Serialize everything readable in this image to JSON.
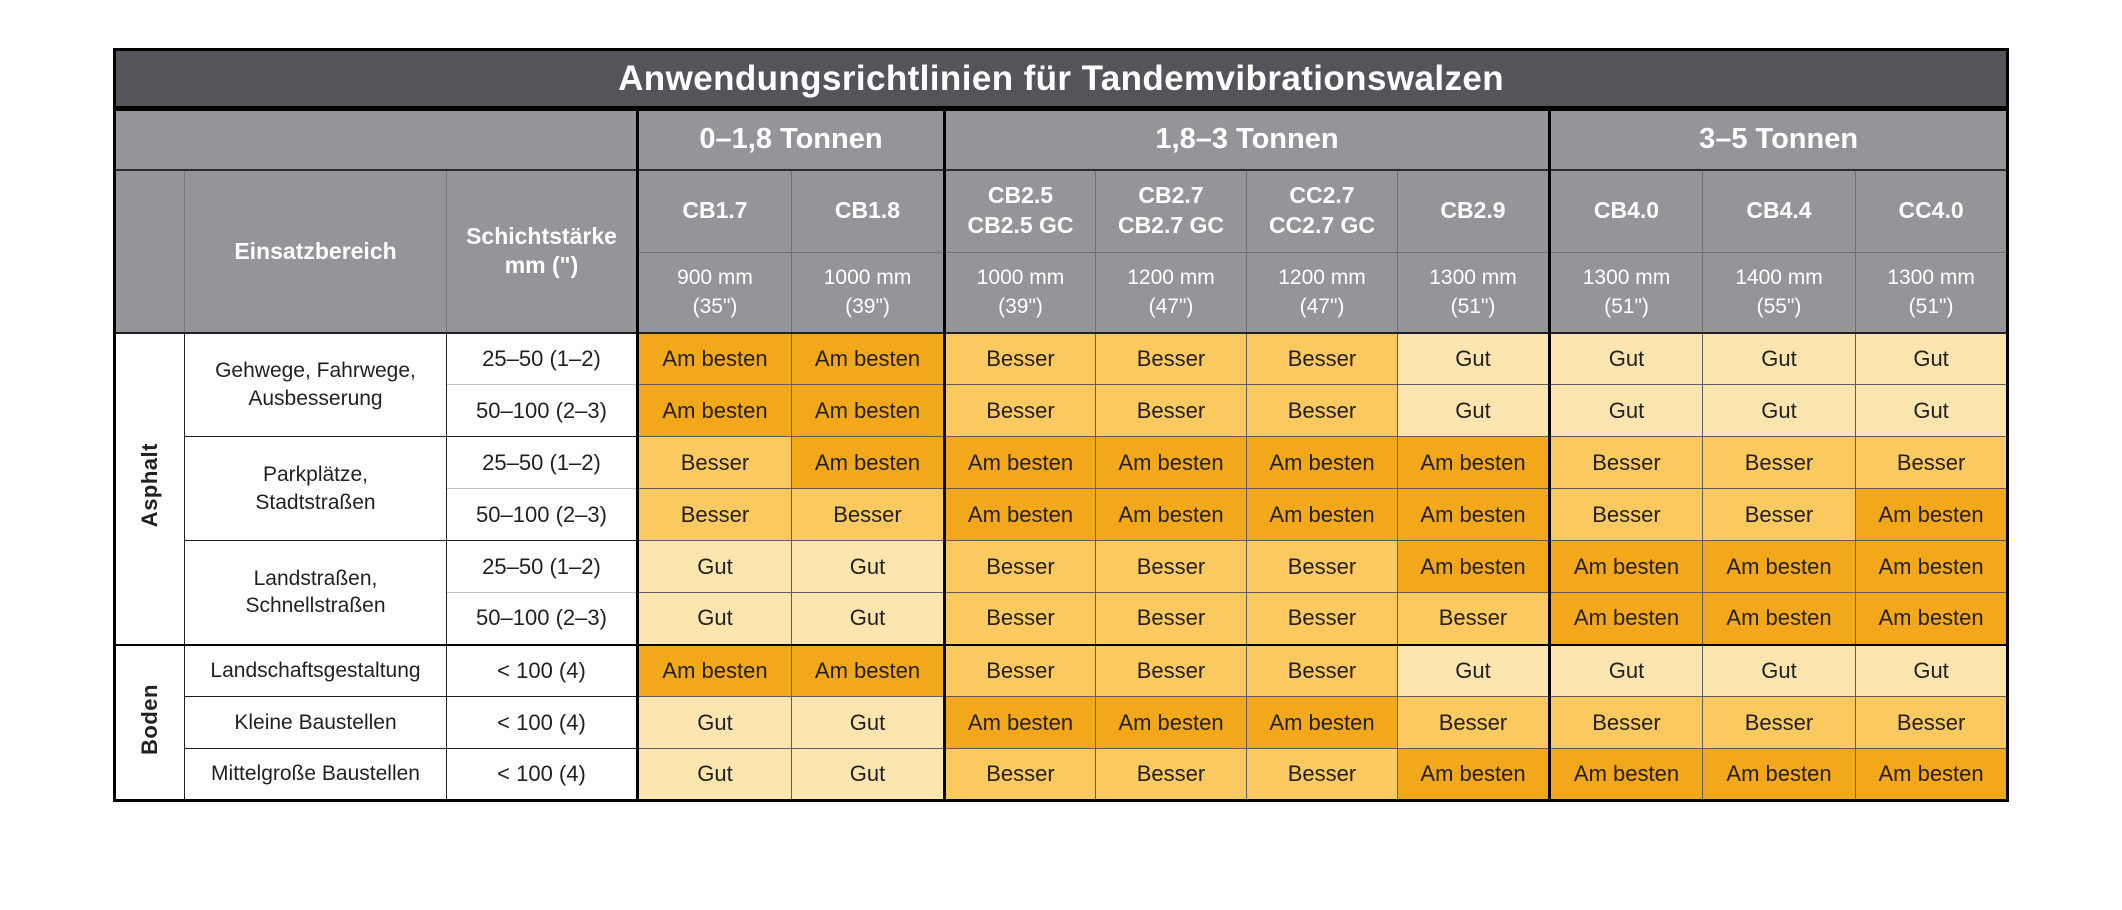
{
  "title": "Anwendungsrichtlinien für Tandemvibrationswalzen",
  "corner": {
    "einsatzbereich": "Einsatzbereich",
    "schichtstaerke": "Schichtstärke\nmm (\")"
  },
  "groups": [
    {
      "label": "0–1,8 Tonnen",
      "models": [
        {
          "name": "CB1.7",
          "width": "900 mm\n(35\")"
        },
        {
          "name": "CB1.8",
          "width": "1000 mm\n(39\")"
        }
      ]
    },
    {
      "label": "1,8–3 Tonnen",
      "models": [
        {
          "name": "CB2.5\nCB2.5 GC",
          "width": "1000 mm\n(39\")"
        },
        {
          "name": "CB2.7\nCB2.7 GC",
          "width": "1200 mm\n(47\")"
        },
        {
          "name": "CC2.7\nCC2.7 GC",
          "width": "1200 mm\n(47\")"
        },
        {
          "name": "CB2.9",
          "width": "1300 mm\n(51\")"
        }
      ]
    },
    {
      "label": "3–5 Tonnen",
      "models": [
        {
          "name": "CB4.0",
          "width": "1300 mm\n(51\")"
        },
        {
          "name": "CB4.4",
          "width": "1400 mm\n(55\")"
        },
        {
          "name": "CC4.0",
          "width": "1300 mm\n(51\")"
        }
      ]
    }
  ],
  "rating_labels": {
    "best": "Am besten",
    "better": "Besser",
    "good": "Gut"
  },
  "colors": {
    "am_besten": "#F3A81C",
    "besser": "#FAC95F",
    "gut": "#FCE5AF",
    "title_bar": "#54555A",
    "header": "#949598",
    "header_text": "#FFFFFF",
    "cell_text": "#231F20"
  },
  "sections": [
    {
      "label": "Asphalt",
      "areas": [
        {
          "label": "Gehwege, Fahrwege,\nAusbesserung",
          "rows": [
            {
              "thickness": "25–50 (1–2)",
              "ratings": [
                "best",
                "best",
                "better",
                "better",
                "better",
                "good",
                "good",
                "good",
                "good"
              ]
            },
            {
              "thickness": "50–100 (2–3)",
              "ratings": [
                "best",
                "best",
                "better",
                "better",
                "better",
                "good",
                "good",
                "good",
                "good"
              ]
            }
          ]
        },
        {
          "label": "Parkplätze,\nStadtstraßen",
          "rows": [
            {
              "thickness": "25–50 (1–2)",
              "ratings": [
                "better",
                "best",
                "best",
                "best",
                "best",
                "best",
                "better",
                "better",
                "better"
              ]
            },
            {
              "thickness": "50–100 (2–3)",
              "ratings": [
                "better",
                "better",
                "best",
                "best",
                "best",
                "best",
                "better",
                "better",
                "best"
              ]
            }
          ]
        },
        {
          "label": "Landstraßen,\nSchnellstraßen",
          "rows": [
            {
              "thickness": "25–50 (1–2)",
              "ratings": [
                "good",
                "good",
                "better",
                "better",
                "better",
                "best",
                "best",
                "best",
                "best"
              ]
            },
            {
              "thickness": "50–100 (2–3)",
              "ratings": [
                "good",
                "good",
                "better",
                "better",
                "better",
                "better",
                "best",
                "best",
                "best"
              ]
            }
          ]
        }
      ]
    },
    {
      "label": "Boden",
      "areas": [
        {
          "label": "Landschaftsgestaltung",
          "rows": [
            {
              "thickness": "< 100 (4)",
              "ratings": [
                "best",
                "best",
                "better",
                "better",
                "better",
                "good",
                "good",
                "good",
                "good"
              ]
            }
          ]
        },
        {
          "label": "Kleine Baustellen",
          "rows": [
            {
              "thickness": "< 100 (4)",
              "ratings": [
                "good",
                "good",
                "best",
                "best",
                "best",
                "better",
                "better",
                "better",
                "better"
              ]
            }
          ]
        },
        {
          "label": "Mittelgroße Baustellen",
          "rows": [
            {
              "thickness": "< 100 (4)",
              "ratings": [
                "good",
                "good",
                "better",
                "better",
                "better",
                "best",
                "best",
                "best",
                "best"
              ]
            }
          ]
        }
      ]
    }
  ]
}
